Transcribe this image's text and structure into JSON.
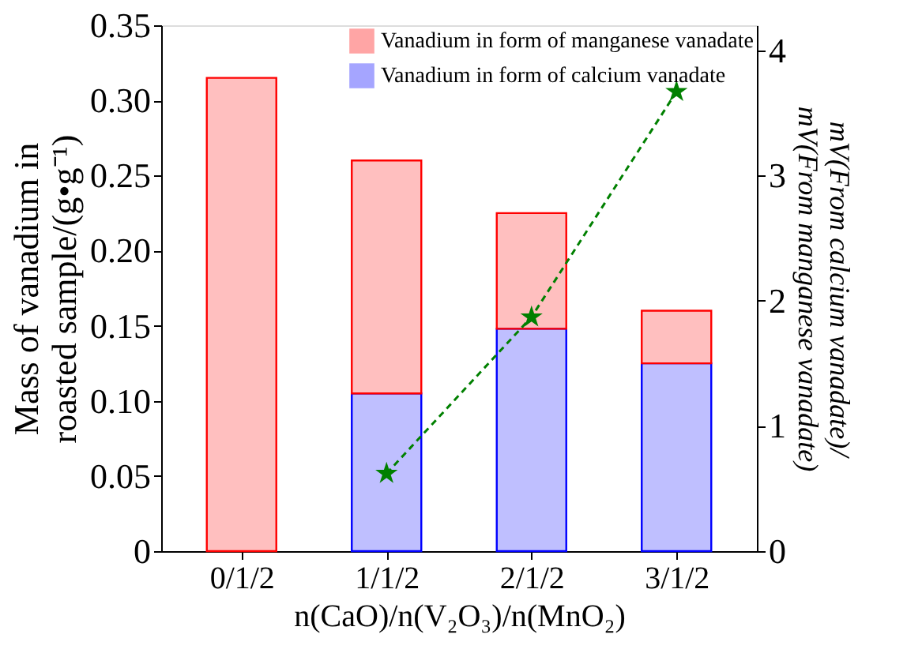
{
  "chart_data": {
    "type": "bar",
    "stacked": true,
    "xlabel": "n(CaO)/n(V₂O₃)/n(MnO₂)",
    "ylabel": "Mass of vanadium in roasted sample/(g•g⁻¹)",
    "y2label": "mV(From calcium vanadate)/mV(From manganese vanadate)",
    "categories": [
      "0/1/2",
      "1/1/2",
      "2/1/2",
      "3/1/2"
    ],
    "series": [
      {
        "name": "Vanadium in form of calcium vanadate",
        "color": "#0000ff",
        "values": [
          null,
          0.105,
          0.148,
          0.125
        ]
      },
      {
        "name": "Vanadium in form of manganese vanadate",
        "color": "#ff0000",
        "values": [
          0.315,
          0.155,
          0.077,
          0.035
        ]
      },
      {
        "type": "line",
        "axis": "y2",
        "color": "#008000",
        "marker": "star",
        "line_style": "dashed",
        "values": [
          null,
          0.62,
          1.87,
          3.67
        ]
      }
    ],
    "ylim": [
      0,
      0.35
    ],
    "yticks": [
      0,
      0.05,
      {
        "value": 0.1,
        "label": "0.10"
      },
      0.15,
      {
        "value": 0.2,
        "label": "0.20"
      },
      0.25,
      {
        "value": 0.3,
        "label": "0.30"
      },
      0.35
    ],
    "y2lim": [
      0,
      4.2
    ],
    "y2ticks": [
      0,
      1,
      2,
      3,
      4
    ],
    "legend": "top right",
    "grid": false
  }
}
